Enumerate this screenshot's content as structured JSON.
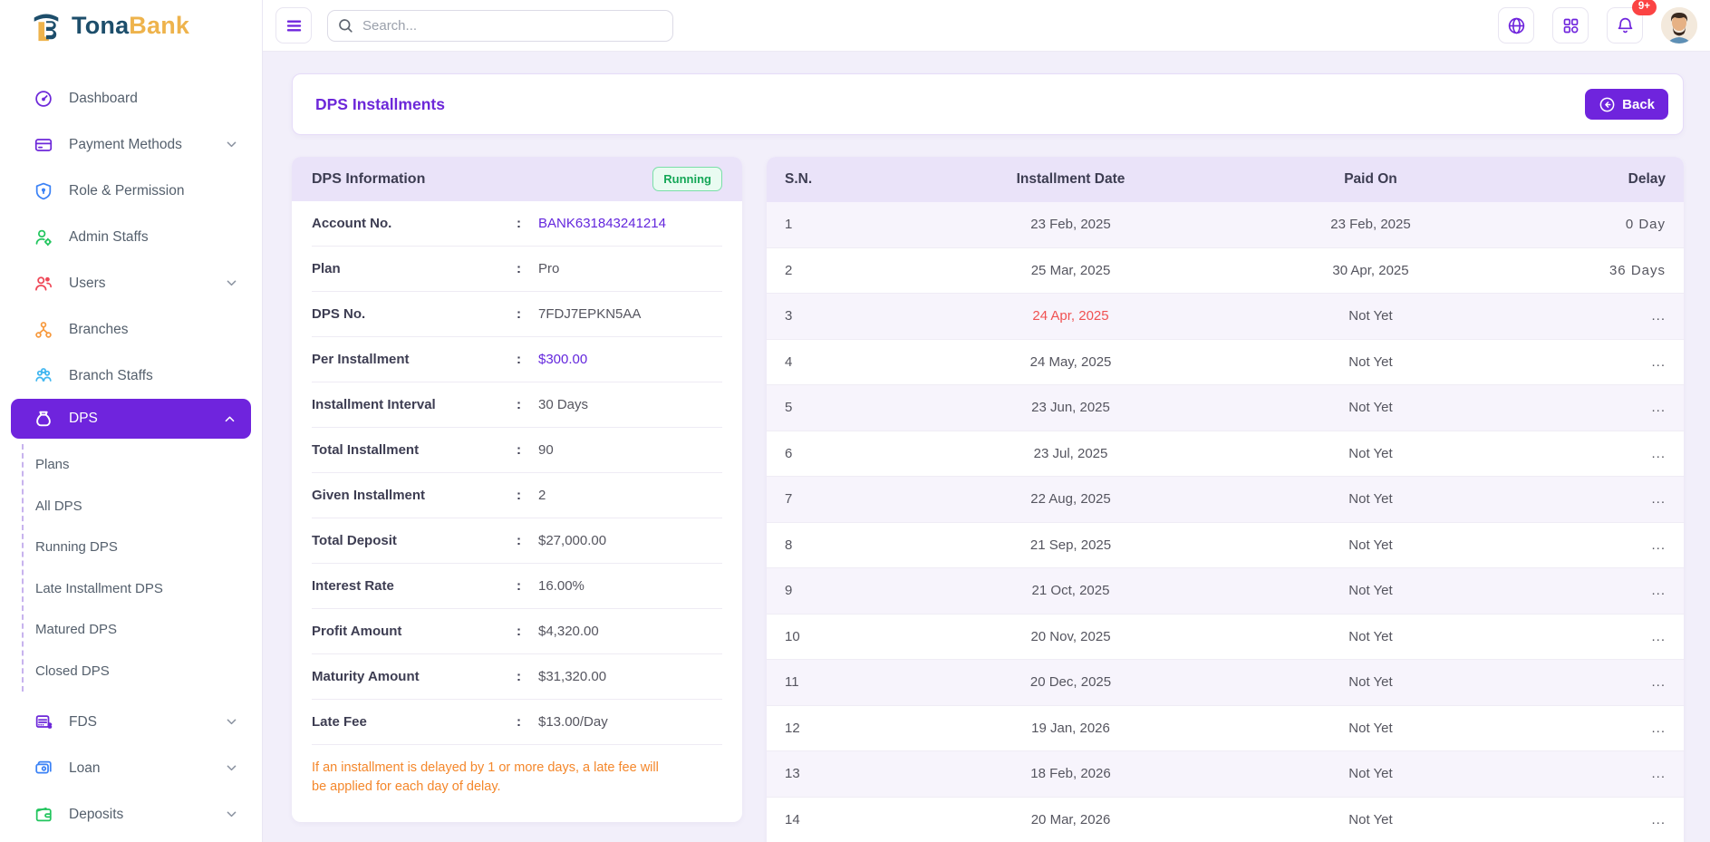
{
  "brand": {
    "name_part1": "Tona",
    "name_part2": "Bank"
  },
  "topbar": {
    "search_placeholder": "Search...",
    "notification_badge": "9+"
  },
  "sidebar": {
    "items": [
      {
        "label": "Dashboard",
        "icon": "speedometer-icon",
        "icon_color": "#6d28d9"
      },
      {
        "label": "Payment Methods",
        "icon": "credit-card-icon",
        "icon_color": "#6d28d9",
        "chevron": "down"
      },
      {
        "label": "Role & Permission",
        "icon": "shield-icon",
        "icon_color": "#3b82f6"
      },
      {
        "label": "Admin Staffs",
        "icon": "person-gear-icon",
        "icon_color": "#22c55e"
      },
      {
        "label": "Users",
        "icon": "users-icon",
        "icon_color": "#ef4757",
        "chevron": "down"
      },
      {
        "label": "Branches",
        "icon": "branches-icon",
        "icon_color": "#f79a3e"
      },
      {
        "label": "Branch Staffs",
        "icon": "branch-staffs-icon",
        "icon_color": "#3fb6f0"
      },
      {
        "label": "DPS",
        "icon": "money-bag-icon",
        "icon_color": "#ffffff",
        "chevron": "up",
        "active": true,
        "children": [
          {
            "label": "Plans"
          },
          {
            "label": "All DPS"
          },
          {
            "label": "Running DPS"
          },
          {
            "label": "Late Installment DPS"
          },
          {
            "label": "Matured DPS"
          },
          {
            "label": "Closed DPS"
          }
        ]
      },
      {
        "label": "FDS",
        "icon": "safe-icon",
        "icon_color": "#6d28d9",
        "chevron": "down"
      },
      {
        "label": "Loan",
        "icon": "loan-wallet-icon",
        "icon_color": "#3b82f6",
        "chevron": "down"
      },
      {
        "label": "Deposits",
        "icon": "deposit-wallet-icon",
        "icon_color": "#22c55e",
        "chevron": "down"
      }
    ]
  },
  "page": {
    "title": "DPS Installments",
    "back_label": "Back"
  },
  "dps_info": {
    "title": "DPS Information",
    "status": "Running",
    "fields": [
      {
        "label": "Account No.",
        "value": "BANK631843241214",
        "highlight": true
      },
      {
        "label": "Plan",
        "value": "Pro"
      },
      {
        "label": "DPS No.",
        "value": "7FDJ7EPKN5AA"
      },
      {
        "label": "Per Installment",
        "value": "$300.00",
        "highlight": true
      },
      {
        "label": "Installment Interval",
        "value": "30 Days"
      },
      {
        "label": "Total Installment",
        "value": "90"
      },
      {
        "label": "Given Installment",
        "value": "2"
      },
      {
        "label": "Total Deposit",
        "value": "$27,000.00"
      },
      {
        "label": "Interest Rate",
        "value": "16.00%"
      },
      {
        "label": "Profit Amount",
        "value": "$4,320.00"
      },
      {
        "label": "Maturity Amount",
        "value": "$31,320.00"
      },
      {
        "label": "Late Fee",
        "value": "$13.00/Day"
      }
    ],
    "note": "If an installment is delayed by 1 or more days, a late fee will be applied for each day of delay."
  },
  "table": {
    "columns": [
      "S.N.",
      "Installment Date",
      "Paid On",
      "Delay"
    ],
    "rows": [
      {
        "sn": "1",
        "date": "23 Feb, 2025",
        "paid": "23 Feb, 2025",
        "delay": "0 Day",
        "overdue": false
      },
      {
        "sn": "2",
        "date": "25 Mar, 2025",
        "paid": "30 Apr, 2025",
        "delay": "36 Days",
        "overdue": false
      },
      {
        "sn": "3",
        "date": "24 Apr, 2025",
        "paid": "Not Yet",
        "delay": "...",
        "overdue": true
      },
      {
        "sn": "4",
        "date": "24 May, 2025",
        "paid": "Not Yet",
        "delay": "...",
        "overdue": false
      },
      {
        "sn": "5",
        "date": "23 Jun, 2025",
        "paid": "Not Yet",
        "delay": "...",
        "overdue": false
      },
      {
        "sn": "6",
        "date": "23 Jul, 2025",
        "paid": "Not Yet",
        "delay": "...",
        "overdue": false
      },
      {
        "sn": "7",
        "date": "22 Aug, 2025",
        "paid": "Not Yet",
        "delay": "...",
        "overdue": false
      },
      {
        "sn": "8",
        "date": "21 Sep, 2025",
        "paid": "Not Yet",
        "delay": "...",
        "overdue": false
      },
      {
        "sn": "9",
        "date": "21 Oct, 2025",
        "paid": "Not Yet",
        "delay": "...",
        "overdue": false
      },
      {
        "sn": "10",
        "date": "20 Nov, 2025",
        "paid": "Not Yet",
        "delay": "...",
        "overdue": false
      },
      {
        "sn": "11",
        "date": "20 Dec, 2025",
        "paid": "Not Yet",
        "delay": "...",
        "overdue": false
      },
      {
        "sn": "12",
        "date": "19 Jan, 2026",
        "paid": "Not Yet",
        "delay": "...",
        "overdue": false
      },
      {
        "sn": "13",
        "date": "18 Feb, 2026",
        "paid": "Not Yet",
        "delay": "...",
        "overdue": false
      },
      {
        "sn": "14",
        "date": "20 Mar, 2026",
        "paid": "Not Yet",
        "delay": "...",
        "overdue": false
      }
    ]
  },
  "colors": {
    "primary_purple": "#6f24dd",
    "title_purple": "#6d28d9",
    "link_purple": "#6427dd",
    "status_green": "#15a757",
    "overdue_red": "#f05252",
    "note_orange": "#f4872b",
    "badge_red": "#fb4343",
    "brand_navy": "#1d4e6b",
    "brand_gold": "#eeb34c"
  }
}
